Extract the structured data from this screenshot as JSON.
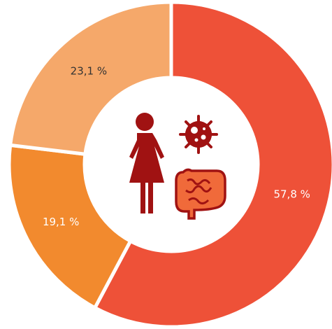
{
  "chart_data": {
    "type": "donut",
    "values": [
      57.8,
      19.1,
      23.1
    ],
    "value_labels": [
      "57,8 %",
      "19,1 %",
      "23,1 %"
    ],
    "colors": [
      "#ee5138",
      "#f28a2e",
      "#f5a86a"
    ],
    "label_colors": [
      "#ffffff",
      "#ffffff",
      "#333333"
    ]
  }
}
